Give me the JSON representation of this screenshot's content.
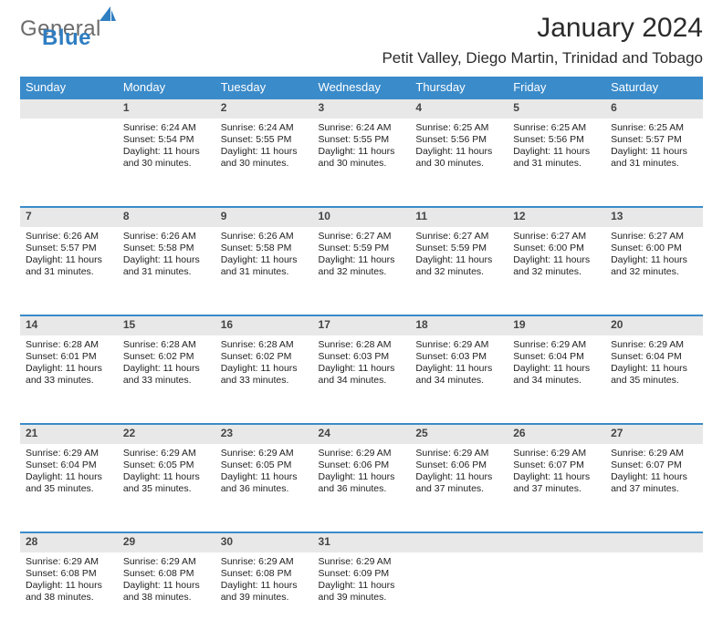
{
  "logo": {
    "text1": "General",
    "text2": "Blue"
  },
  "title": "January 2024",
  "subtitle": "Petit Valley, Diego Martin, Trinidad and Tobago",
  "colors": {
    "header_bg": "#3a8bca",
    "header_text": "#ffffff",
    "row_sep": "#3a8bca",
    "daynum_bg": "#e8e8e8",
    "logo_blue": "#2f7ec2"
  },
  "day_names": [
    "Sunday",
    "Monday",
    "Tuesday",
    "Wednesday",
    "Thursday",
    "Friday",
    "Saturday"
  ],
  "weeks": [
    [
      {
        "num": "",
        "lines": [
          "",
          "",
          "",
          ""
        ]
      },
      {
        "num": "1",
        "lines": [
          "Sunrise: 6:24 AM",
          "Sunset: 5:54 PM",
          "Daylight: 11 hours",
          "and 30 minutes."
        ]
      },
      {
        "num": "2",
        "lines": [
          "Sunrise: 6:24 AM",
          "Sunset: 5:55 PM",
          "Daylight: 11 hours",
          "and 30 minutes."
        ]
      },
      {
        "num": "3",
        "lines": [
          "Sunrise: 6:24 AM",
          "Sunset: 5:55 PM",
          "Daylight: 11 hours",
          "and 30 minutes."
        ]
      },
      {
        "num": "4",
        "lines": [
          "Sunrise: 6:25 AM",
          "Sunset: 5:56 PM",
          "Daylight: 11 hours",
          "and 30 minutes."
        ]
      },
      {
        "num": "5",
        "lines": [
          "Sunrise: 6:25 AM",
          "Sunset: 5:56 PM",
          "Daylight: 11 hours",
          "and 31 minutes."
        ]
      },
      {
        "num": "6",
        "lines": [
          "Sunrise: 6:25 AM",
          "Sunset: 5:57 PM",
          "Daylight: 11 hours",
          "and 31 minutes."
        ]
      }
    ],
    [
      {
        "num": "7",
        "lines": [
          "Sunrise: 6:26 AM",
          "Sunset: 5:57 PM",
          "Daylight: 11 hours",
          "and 31 minutes."
        ]
      },
      {
        "num": "8",
        "lines": [
          "Sunrise: 6:26 AM",
          "Sunset: 5:58 PM",
          "Daylight: 11 hours",
          "and 31 minutes."
        ]
      },
      {
        "num": "9",
        "lines": [
          "Sunrise: 6:26 AM",
          "Sunset: 5:58 PM",
          "Daylight: 11 hours",
          "and 31 minutes."
        ]
      },
      {
        "num": "10",
        "lines": [
          "Sunrise: 6:27 AM",
          "Sunset: 5:59 PM",
          "Daylight: 11 hours",
          "and 32 minutes."
        ]
      },
      {
        "num": "11",
        "lines": [
          "Sunrise: 6:27 AM",
          "Sunset: 5:59 PM",
          "Daylight: 11 hours",
          "and 32 minutes."
        ]
      },
      {
        "num": "12",
        "lines": [
          "Sunrise: 6:27 AM",
          "Sunset: 6:00 PM",
          "Daylight: 11 hours",
          "and 32 minutes."
        ]
      },
      {
        "num": "13",
        "lines": [
          "Sunrise: 6:27 AM",
          "Sunset: 6:00 PM",
          "Daylight: 11 hours",
          "and 32 minutes."
        ]
      }
    ],
    [
      {
        "num": "14",
        "lines": [
          "Sunrise: 6:28 AM",
          "Sunset: 6:01 PM",
          "Daylight: 11 hours",
          "and 33 minutes."
        ]
      },
      {
        "num": "15",
        "lines": [
          "Sunrise: 6:28 AM",
          "Sunset: 6:02 PM",
          "Daylight: 11 hours",
          "and 33 minutes."
        ]
      },
      {
        "num": "16",
        "lines": [
          "Sunrise: 6:28 AM",
          "Sunset: 6:02 PM",
          "Daylight: 11 hours",
          "and 33 minutes."
        ]
      },
      {
        "num": "17",
        "lines": [
          "Sunrise: 6:28 AM",
          "Sunset: 6:03 PM",
          "Daylight: 11 hours",
          "and 34 minutes."
        ]
      },
      {
        "num": "18",
        "lines": [
          "Sunrise: 6:29 AM",
          "Sunset: 6:03 PM",
          "Daylight: 11 hours",
          "and 34 minutes."
        ]
      },
      {
        "num": "19",
        "lines": [
          "Sunrise: 6:29 AM",
          "Sunset: 6:04 PM",
          "Daylight: 11 hours",
          "and 34 minutes."
        ]
      },
      {
        "num": "20",
        "lines": [
          "Sunrise: 6:29 AM",
          "Sunset: 6:04 PM",
          "Daylight: 11 hours",
          "and 35 minutes."
        ]
      }
    ],
    [
      {
        "num": "21",
        "lines": [
          "Sunrise: 6:29 AM",
          "Sunset: 6:04 PM",
          "Daylight: 11 hours",
          "and 35 minutes."
        ]
      },
      {
        "num": "22",
        "lines": [
          "Sunrise: 6:29 AM",
          "Sunset: 6:05 PM",
          "Daylight: 11 hours",
          "and 35 minutes."
        ]
      },
      {
        "num": "23",
        "lines": [
          "Sunrise: 6:29 AM",
          "Sunset: 6:05 PM",
          "Daylight: 11 hours",
          "and 36 minutes."
        ]
      },
      {
        "num": "24",
        "lines": [
          "Sunrise: 6:29 AM",
          "Sunset: 6:06 PM",
          "Daylight: 11 hours",
          "and 36 minutes."
        ]
      },
      {
        "num": "25",
        "lines": [
          "Sunrise: 6:29 AM",
          "Sunset: 6:06 PM",
          "Daylight: 11 hours",
          "and 37 minutes."
        ]
      },
      {
        "num": "26",
        "lines": [
          "Sunrise: 6:29 AM",
          "Sunset: 6:07 PM",
          "Daylight: 11 hours",
          "and 37 minutes."
        ]
      },
      {
        "num": "27",
        "lines": [
          "Sunrise: 6:29 AM",
          "Sunset: 6:07 PM",
          "Daylight: 11 hours",
          "and 37 minutes."
        ]
      }
    ],
    [
      {
        "num": "28",
        "lines": [
          "Sunrise: 6:29 AM",
          "Sunset: 6:08 PM",
          "Daylight: 11 hours",
          "and 38 minutes."
        ]
      },
      {
        "num": "29",
        "lines": [
          "Sunrise: 6:29 AM",
          "Sunset: 6:08 PM",
          "Daylight: 11 hours",
          "and 38 minutes."
        ]
      },
      {
        "num": "30",
        "lines": [
          "Sunrise: 6:29 AM",
          "Sunset: 6:08 PM",
          "Daylight: 11 hours",
          "and 39 minutes."
        ]
      },
      {
        "num": "31",
        "lines": [
          "Sunrise: 6:29 AM",
          "Sunset: 6:09 PM",
          "Daylight: 11 hours",
          "and 39 minutes."
        ]
      },
      {
        "num": "",
        "lines": [
          "",
          "",
          "",
          ""
        ]
      },
      {
        "num": "",
        "lines": [
          "",
          "",
          "",
          ""
        ]
      },
      {
        "num": "",
        "lines": [
          "",
          "",
          "",
          ""
        ]
      }
    ]
  ]
}
